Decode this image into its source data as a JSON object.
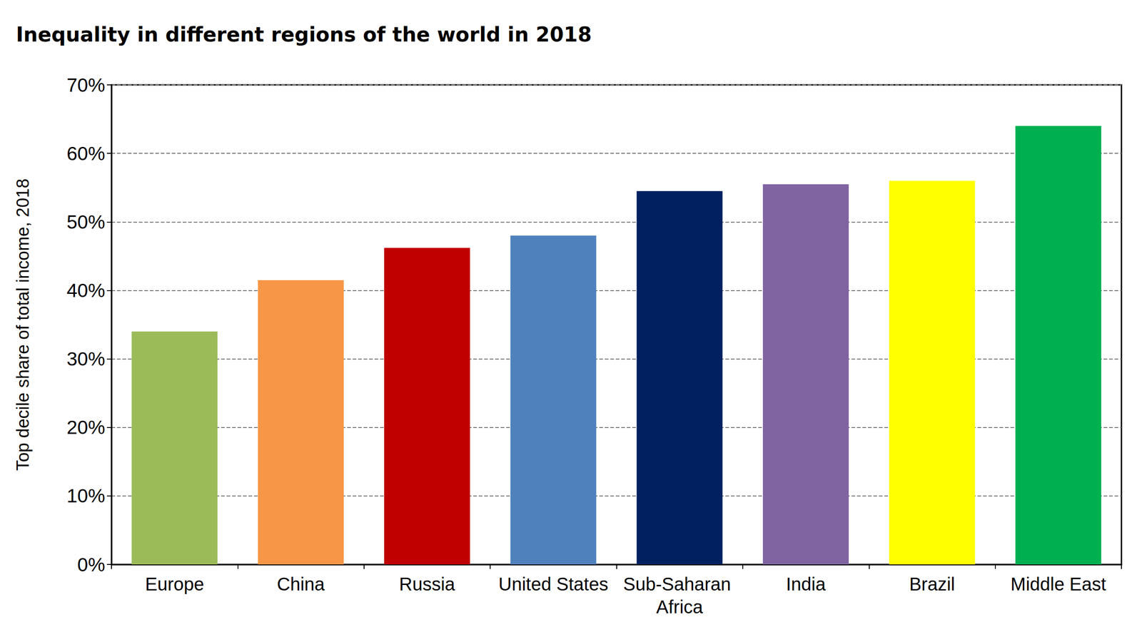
{
  "chart_data": {
    "type": "bar",
    "title": "Inequality in different regions of the world in 2018",
    "y_label": "Top decile share of total income, 2018",
    "categories": [
      "Europe",
      "China",
      "Russia",
      "United States",
      "Sub-Saharan Africa",
      "India",
      "Brazil",
      "Middle East"
    ],
    "values": [
      34,
      41.5,
      46.2,
      48,
      54.5,
      55.5,
      56,
      64
    ],
    "colors": [
      "#9bbb59",
      "#f79646",
      "#c00000",
      "#4f81bd",
      "#002060",
      "#8064a2",
      "#ffff00",
      "#00b050"
    ],
    "ylim": [
      0,
      70
    ],
    "yticks": [
      {
        "value": 0,
        "label": "0%"
      },
      {
        "value": 10,
        "label": "10%"
      },
      {
        "value": 20,
        "label": "20%"
      },
      {
        "value": 30,
        "label": "30%"
      },
      {
        "value": 40,
        "label": "40%"
      },
      {
        "value": 50,
        "label": "50%"
      },
      {
        "value": 60,
        "label": "60%"
      },
      {
        "value": 70,
        "label": "70%"
      }
    ],
    "grid": true
  }
}
